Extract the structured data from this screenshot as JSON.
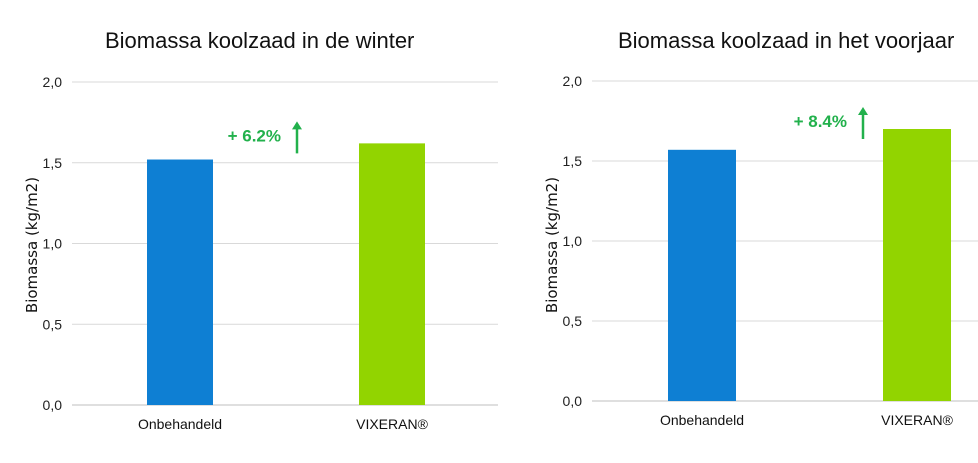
{
  "chart_data": [
    {
      "type": "bar",
      "title": "Biomassa koolzaad in de winter",
      "ylabel": "Biomassa (kg/m2)",
      "categories": [
        "Onbehandeld",
        "VIXERAN®"
      ],
      "values": [
        1.52,
        1.62
      ],
      "colors": [
        "#0e7fd3",
        "#92d400"
      ],
      "ylim": [
        0,
        2.0
      ],
      "yticks": [
        "0,0",
        "0,5",
        "1,0",
        "1,5",
        "2,0"
      ],
      "ytick_values": [
        0,
        0.5,
        1.0,
        1.5,
        2.0
      ],
      "grid": true,
      "annotation": {
        "text": "+ 6.2%",
        "color": "#22b14c",
        "icon": "up-arrow-icon"
      }
    },
    {
      "type": "bar",
      "title": "Biomassa koolzaad in het voorjaar",
      "ylabel": "Biomassa (kg/m2)",
      "categories": [
        "Onbehandeld",
        "VIXERAN®"
      ],
      "values": [
        1.57,
        1.7
      ],
      "colors": [
        "#0e7fd3",
        "#92d400"
      ],
      "ylim": [
        0,
        2.0
      ],
      "yticks": [
        "0,0",
        "0,5",
        "1,0",
        "1,5",
        "2,0"
      ],
      "ytick_values": [
        0,
        0.5,
        1.0,
        1.5,
        2.0
      ],
      "grid": true,
      "annotation": {
        "text": "+ 8.4%",
        "color": "#22b14c",
        "icon": "up-arrow-icon"
      }
    }
  ]
}
